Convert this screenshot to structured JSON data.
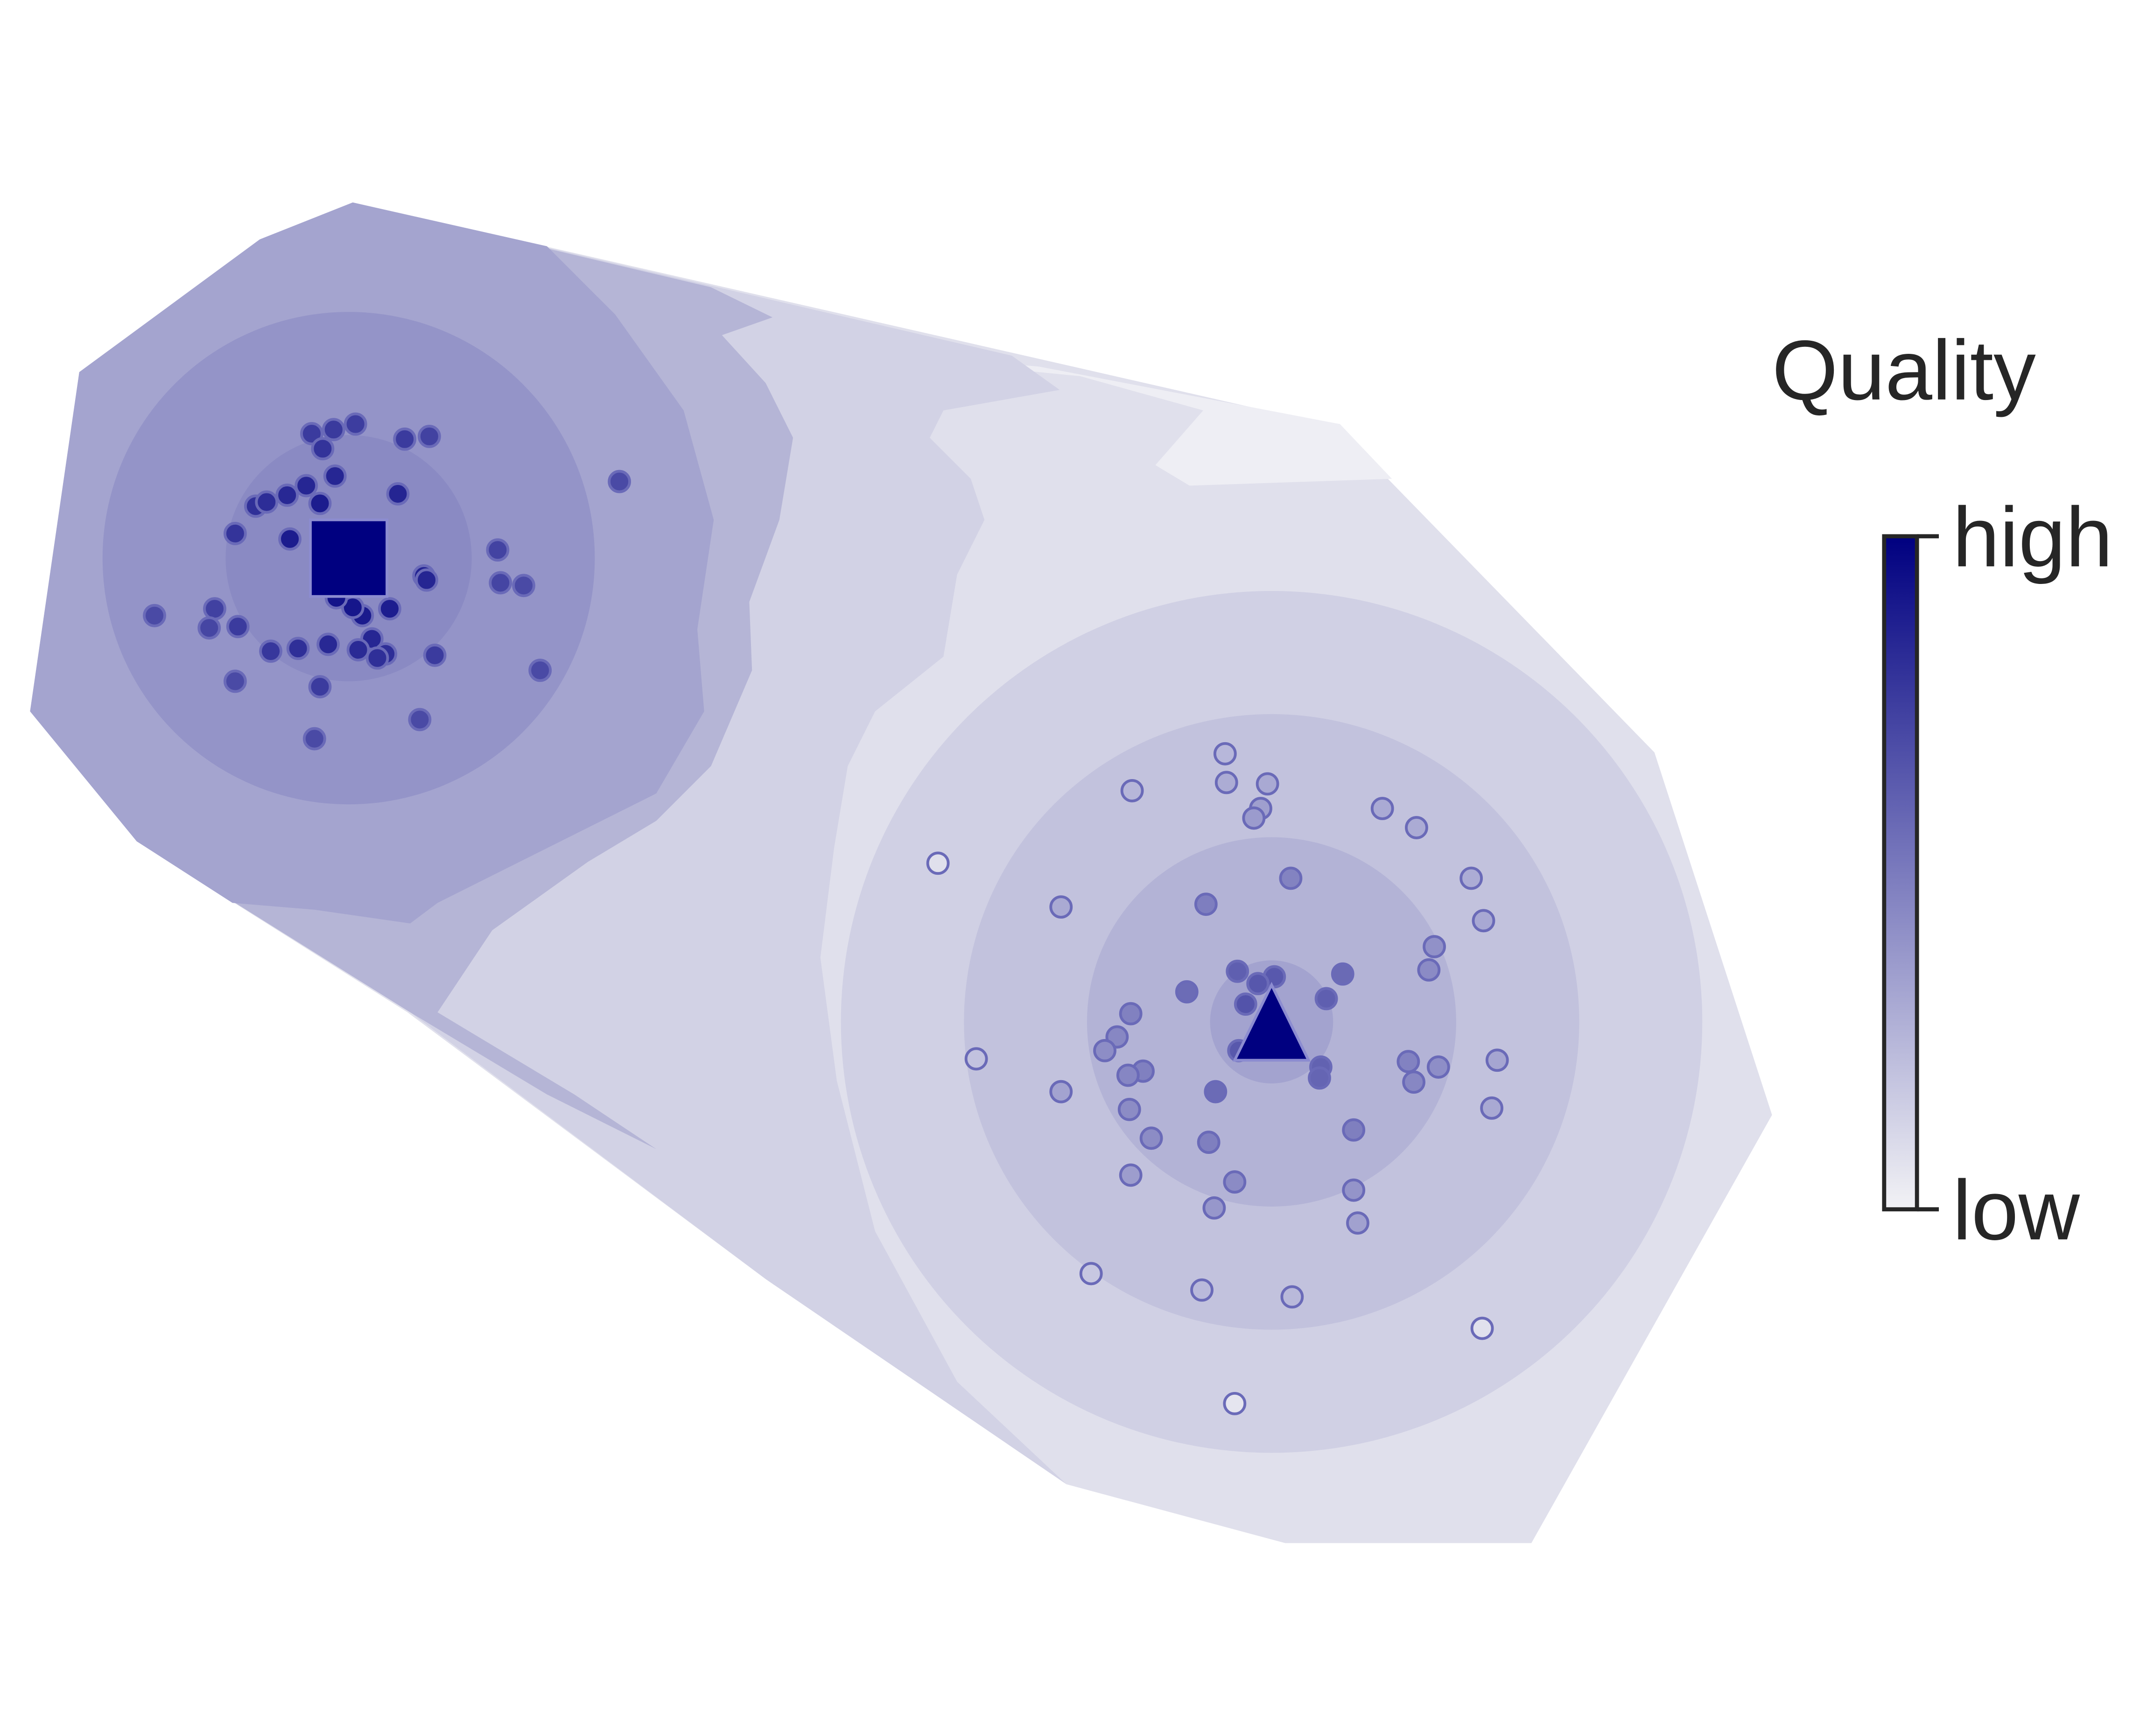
{
  "chart_data": {
    "type": "scatter",
    "title": "",
    "xlabel": "",
    "ylabel": "",
    "axes_visible": false,
    "grid": false,
    "background": "filled contour (quality field)",
    "colormap": {
      "low": "#f2f2f5",
      "high": "#000080"
    },
    "colorbar": {
      "title": "Quality",
      "tick_labels": [
        "high",
        "low"
      ],
      "placement": "right"
    },
    "x_range": [
      0,
      1520
    ],
    "y_range": [
      0,
      1120
    ],
    "centers": [
      {
        "marker": "square",
        "x": 255,
        "y": 408,
        "quality": 1.0
      },
      {
        "marker": "triangle",
        "x": 930,
        "y": 747,
        "quality": 1.0
      }
    ],
    "points_cluster_1": [
      [
        228,
        317
      ],
      [
        244,
        314
      ],
      [
        260,
        310
      ],
      [
        296,
        321
      ],
      [
        314,
        319
      ],
      [
        236,
        328
      ],
      [
        245,
        348
      ],
      [
        210,
        362
      ],
      [
        224,
        355
      ],
      [
        234,
        368
      ],
      [
        187,
        370
      ],
      [
        195,
        367
      ],
      [
        291,
        361
      ],
      [
        172,
        390
      ],
      [
        212,
        394
      ],
      [
        453,
        352
      ],
      [
        364,
        402
      ],
      [
        366,
        426
      ],
      [
        383,
        428
      ],
      [
        310,
        421
      ],
      [
        312,
        424
      ],
      [
        113,
        450
      ],
      [
        157,
        445
      ],
      [
        153,
        459
      ],
      [
        174,
        458
      ],
      [
        285,
        445
      ],
      [
        265,
        450
      ],
      [
        258,
        444
      ],
      [
        246,
        437
      ],
      [
        272,
        467
      ],
      [
        198,
        476
      ],
      [
        218,
        474
      ],
      [
        240,
        471
      ],
      [
        262,
        475
      ],
      [
        282,
        478
      ],
      [
        276,
        481
      ],
      [
        318,
        479
      ],
      [
        395,
        490
      ],
      [
        172,
        498
      ],
      [
        234,
        502
      ],
      [
        307,
        526
      ],
      [
        230,
        540
      ]
    ],
    "points_cluster_2": [
      [
        896,
        551
      ],
      [
        828,
        578
      ],
      [
        897,
        572
      ],
      [
        927,
        573
      ],
      [
        922,
        591
      ],
      [
        917,
        598
      ],
      [
        1011,
        591
      ],
      [
        1036,
        605
      ],
      [
        686,
        631
      ],
      [
        944,
        642
      ],
      [
        1076,
        642
      ],
      [
        776,
        663
      ],
      [
        882,
        661
      ],
      [
        1085,
        673
      ],
      [
        1049,
        692
      ],
      [
        1045,
        709
      ],
      [
        905,
        710
      ],
      [
        932,
        714
      ],
      [
        982,
        712
      ],
      [
        920,
        719
      ],
      [
        868,
        725
      ],
      [
        970,
        730
      ],
      [
        911,
        734
      ],
      [
        827,
        741
      ],
      [
        817,
        758
      ],
      [
        808,
        768
      ],
      [
        714,
        774
      ],
      [
        906,
        768
      ],
      [
        966,
        780
      ],
      [
        1030,
        776
      ],
      [
        1052,
        780
      ],
      [
        1095,
        775
      ],
      [
        836,
        783
      ],
      [
        825,
        786
      ],
      [
        965,
        788
      ],
      [
        1034,
        791
      ],
      [
        776,
        798
      ],
      [
        889,
        798
      ],
      [
        826,
        811
      ],
      [
        1091,
        810
      ],
      [
        990,
        826
      ],
      [
        842,
        832
      ],
      [
        884,
        835
      ],
      [
        827,
        859
      ],
      [
        903,
        864
      ],
      [
        990,
        870
      ],
      [
        888,
        883
      ],
      [
        993,
        894
      ],
      [
        798,
        931
      ],
      [
        879,
        943
      ],
      [
        945,
        948
      ],
      [
        1084,
        971
      ],
      [
        903,
        1026
      ]
    ]
  }
}
